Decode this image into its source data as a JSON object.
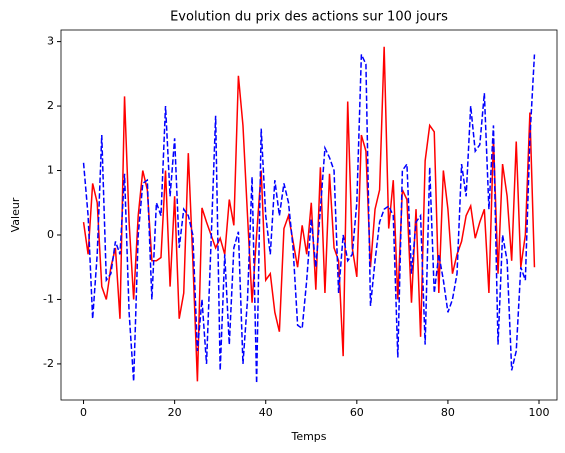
{
  "chart_data": {
    "type": "line",
    "title": "Evolution du prix des actions sur 100 jours",
    "x_label": "Temps",
    "y_label": "Valeur",
    "x": [
      0,
      1,
      2,
      3,
      4,
      5,
      6,
      7,
      8,
      9,
      10,
      11,
      12,
      13,
      14,
      15,
      16,
      17,
      18,
      19,
      20,
      21,
      22,
      23,
      24,
      25,
      26,
      27,
      28,
      29,
      30,
      31,
      32,
      33,
      34,
      35,
      36,
      37,
      38,
      39,
      40,
      41,
      42,
      43,
      44,
      45,
      46,
      47,
      48,
      49,
      50,
      51,
      52,
      53,
      54,
      55,
      56,
      57,
      58,
      59,
      60,
      61,
      62,
      63,
      64,
      65,
      66,
      67,
      68,
      69,
      70,
      71,
      72,
      73,
      74,
      75,
      76,
      77,
      78,
      79,
      80,
      81,
      82,
      83,
      84,
      85,
      86,
      87,
      88,
      89,
      90,
      91,
      92,
      93,
      94,
      95,
      96,
      97,
      98,
      99
    ],
    "series": [
      {
        "color": "#ff0000",
        "linestyle": "solid",
        "values": [
          0.2,
          -0.3,
          0.8,
          0.5,
          -0.8,
          -1.0,
          -0.5,
          -0.2,
          -1.3,
          2.15,
          0.2,
          -1.0,
          0.3,
          1.0,
          0.7,
          -0.4,
          -0.4,
          -0.35,
          1.0,
          -0.8,
          0.6,
          -1.3,
          -0.9,
          1.27,
          -0.4,
          -2.27,
          0.42,
          0.2,
          0.0,
          -0.2,
          -0.05,
          -0.3,
          0.55,
          0.15,
          2.47,
          1.7,
          0.3,
          -1.05,
          0.0,
          1.0,
          -0.7,
          -0.6,
          -1.2,
          -1.5,
          0.1,
          0.3,
          -0.1,
          -0.5,
          0.15,
          -0.3,
          0.5,
          -0.85,
          1.05,
          -0.9,
          0.95,
          -0.2,
          -0.4,
          -1.88,
          2.07,
          -0.2,
          -0.65,
          1.55,
          1.3,
          -0.5,
          0.4,
          0.7,
          2.92,
          0.1,
          0.85,
          -1.0,
          0.7,
          0.55,
          -1.05,
          0.4,
          -1.58,
          1.15,
          1.7,
          1.6,
          -0.9,
          1.0,
          0.4,
          -0.6,
          -0.3,
          -0.1,
          0.3,
          0.45,
          -0.05,
          0.2,
          0.4,
          -0.9,
          1.5,
          -0.6,
          1.1,
          0.6,
          -0.4,
          1.45,
          -0.5,
          0.0,
          1.9,
          -0.5
        ]
      },
      {
        "color": "#0000ff",
        "linestyle": "dashed",
        "values": [
          1.12,
          0.3,
          -1.3,
          -0.3,
          1.55,
          -0.7,
          -0.6,
          -0.1,
          -0.3,
          0.95,
          -1.2,
          -2.27,
          0.0,
          0.8,
          0.85,
          -1.0,
          0.5,
          0.3,
          2.0,
          0.6,
          1.5,
          -0.2,
          0.4,
          0.3,
          0.0,
          -1.8,
          -1.0,
          -2.0,
          -0.1,
          1.85,
          -2.1,
          -0.3,
          -1.7,
          -0.2,
          0.05,
          -2.0,
          -1.0,
          0.9,
          -2.3,
          1.65,
          0.3,
          -0.3,
          0.85,
          0.3,
          0.8,
          0.5,
          -0.2,
          -1.4,
          -1.45,
          -0.7,
          0.25,
          -0.5,
          0.4,
          1.35,
          1.2,
          1.0,
          -0.9,
          0.0,
          -0.4,
          -0.3,
          0.5,
          2.8,
          2.65,
          -1.1,
          -0.4,
          0.2,
          0.4,
          0.45,
          0.3,
          -1.9,
          1.0,
          1.1,
          -0.6,
          0.2,
          0.3,
          -1.7,
          1.05,
          -0.9,
          -0.3,
          -0.7,
          -1.2,
          -1.0,
          -0.6,
          1.1,
          0.6,
          2.0,
          1.3,
          1.4,
          2.2,
          0.4,
          1.7,
          -1.7,
          0.0,
          -0.4,
          -2.1,
          -1.8,
          -0.5,
          -0.7,
          1.5,
          2.8
        ]
      }
    ],
    "xlim": [
      -4.95,
      103.95
    ],
    "ylim": [
      -2.56,
      3.18
    ],
    "xticks": [
      0,
      20,
      40,
      60,
      80,
      100
    ],
    "yticks": [
      -2,
      -1,
      0,
      1,
      2,
      3
    ],
    "grid": false
  }
}
